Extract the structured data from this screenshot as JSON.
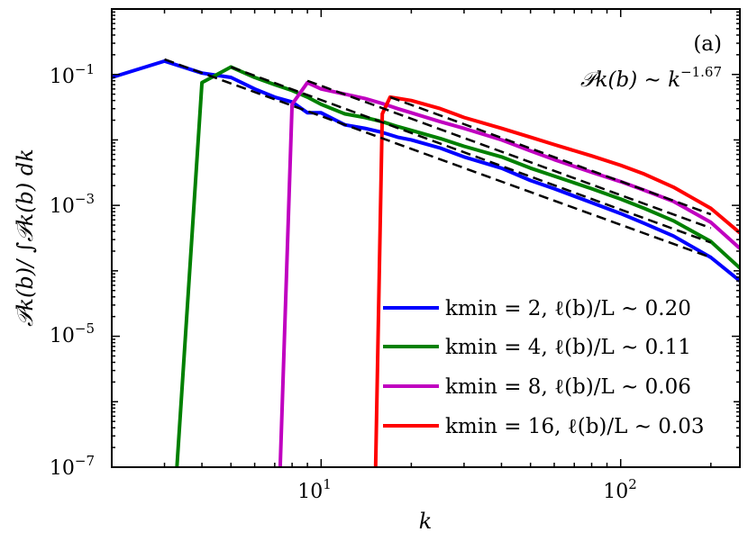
{
  "chart_data": {
    "type": "line",
    "xscale": "log",
    "yscale": "log",
    "xlim": [
      2,
      250
    ],
    "ylim": [
      1e-07,
      1
    ],
    "xlabel": "k",
    "ylabel": "𝒫k(b)/ ∫𝒫k(b) dk",
    "x_ticks": [
      {
        "value": 10,
        "label": "10",
        "exp": "1"
      },
      {
        "value": 100,
        "label": "10",
        "exp": "2"
      }
    ],
    "y_ticks": [
      {
        "value": 0.1,
        "label": "10",
        "exp": "−1"
      },
      {
        "value": 0.001,
        "label": "10",
        "exp": "−3"
      },
      {
        "value": 1e-05,
        "label": "10",
        "exp": "−5"
      },
      {
        "value": 1e-07,
        "label": "10",
        "exp": "−7"
      }
    ],
    "annotations": {
      "panel": "(a)",
      "fit_lhs": "𝒫k(b) ∼ k",
      "fit_exponent": "−1.67"
    },
    "series": [
      {
        "name": "kmin = 2, ℓ(b)/L ∼ 0.20",
        "color": "#0000ff",
        "x": [
          2,
          3,
          4,
          5,
          6,
          7,
          8,
          9,
          10,
          12,
          14,
          16,
          18,
          20,
          25,
          30,
          40,
          50,
          60,
          80,
          100,
          120,
          150,
          200,
          250
        ],
        "y": [
          0.09,
          0.16,
          0.105,
          0.09,
          0.06,
          0.045,
          0.038,
          0.026,
          0.026,
          0.017,
          0.015,
          0.013,
          0.011,
          0.01,
          0.0075,
          0.0055,
          0.0037,
          0.0024,
          0.0018,
          0.0011,
          0.00075,
          0.00053,
          0.00034,
          0.00016,
          7e-05
        ]
      },
      {
        "name": "kmin = 4, ℓ(b)/L ∼ 0.11",
        "color": "#008000",
        "x": [
          3.3,
          4,
          5,
          6,
          7,
          8,
          9,
          10,
          12,
          14,
          16,
          18,
          20,
          25,
          30,
          40,
          50,
          60,
          80,
          100,
          120,
          150,
          200,
          250
        ],
        "y": [
          1e-07,
          0.075,
          0.13,
          0.09,
          0.07,
          0.057,
          0.045,
          0.035,
          0.025,
          0.022,
          0.019,
          0.016,
          0.014,
          0.0105,
          0.008,
          0.0055,
          0.0037,
          0.0028,
          0.0018,
          0.00125,
          0.0009,
          0.00058,
          0.00028,
          0.00011
        ]
      },
      {
        "name": "kmin = 8, ℓ(b)/L ∼ 0.06",
        "color": "#c000c0",
        "x": [
          7.3,
          8,
          9,
          10,
          12,
          14,
          16,
          18,
          20,
          25,
          30,
          40,
          50,
          60,
          80,
          100,
          120,
          150,
          200,
          250
        ],
        "y": [
          1e-07,
          0.035,
          0.075,
          0.06,
          0.05,
          0.043,
          0.036,
          0.03,
          0.026,
          0.019,
          0.015,
          0.01,
          0.0068,
          0.005,
          0.0032,
          0.0023,
          0.0017,
          0.00115,
          0.00055,
          0.00022
        ]
      },
      {
        "name": "kmin = 16, ℓ(b)/L ∼ 0.03",
        "color": "#ff0000",
        "x": [
          15.2,
          16,
          17,
          20,
          25,
          30,
          40,
          50,
          60,
          80,
          100,
          120,
          150,
          200,
          250
        ],
        "y": [
          1e-07,
          0.025,
          0.045,
          0.04,
          0.03,
          0.022,
          0.015,
          0.011,
          0.0085,
          0.0057,
          0.0041,
          0.003,
          0.0019,
          0.0009,
          0.00038
        ]
      }
    ],
    "fit_lines": [
      {
        "exponent": -1.67,
        "x": [
          3,
          200
        ],
        "y": [
          0.17,
          0.00016
        ]
      },
      {
        "exponent": -1.67,
        "x": [
          5,
          200
        ],
        "y": [
          0.13,
          0.00027
        ]
      },
      {
        "exponent": -1.67,
        "x": [
          9,
          200
        ],
        "y": [
          0.08,
          0.00045
        ]
      },
      {
        "exponent": -1.67,
        "x": [
          17,
          200
        ],
        "y": [
          0.045,
          0.00073
        ]
      }
    ]
  }
}
